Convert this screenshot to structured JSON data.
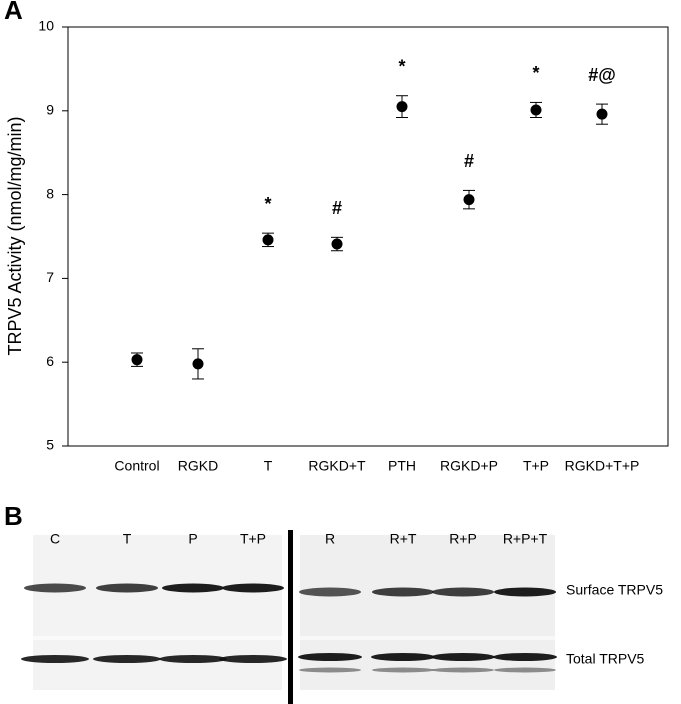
{
  "chart_data": {
    "type": "scatter",
    "y_label": "TRPV5 Activity (nmol/mg/min)",
    "categories": [
      "Control",
      "RGKD",
      "T",
      "RGKD+T",
      "PTH",
      "RGKD+P",
      "T+P",
      "RGKD+T+P"
    ],
    "values": [
      6.03,
      5.98,
      7.46,
      7.41,
      9.05,
      7.94,
      9.01,
      8.96
    ],
    "errors": [
      0.08,
      0.18,
      0.08,
      0.08,
      0.13,
      0.11,
      0.09,
      0.12
    ],
    "annotations": [
      null,
      null,
      "*",
      "#",
      "*",
      "#",
      "*",
      "#@"
    ],
    "color": "#000000",
    "ylim": [
      5,
      10
    ],
    "yticks": [
      5,
      6,
      7,
      8,
      9,
      10
    ]
  },
  "panel_labels": [
    "A",
    "B"
  ],
  "blot": {
    "left_lanes": [
      "C",
      "T",
      "P",
      "T+P"
    ],
    "right_lanes": [
      "R",
      "R+T",
      "R+P",
      "R+P+T"
    ],
    "rows": [
      "Surface TRPV5",
      "Total TRPV5"
    ]
  }
}
